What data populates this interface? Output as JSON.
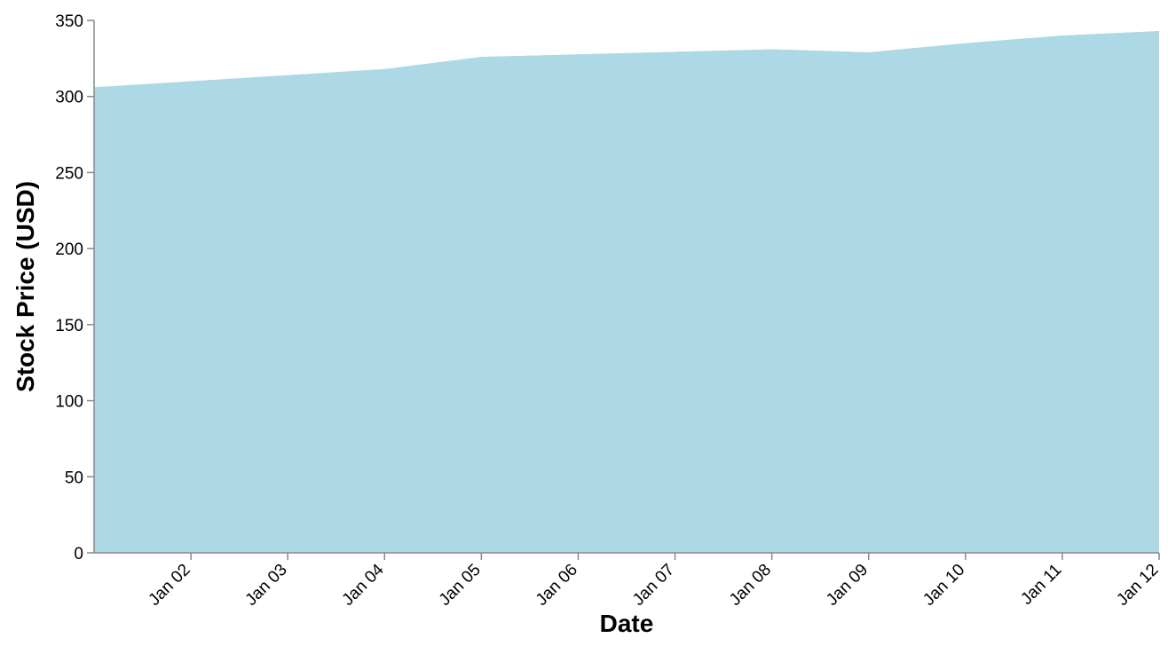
{
  "chart_data": {
    "type": "area",
    "title": "",
    "xlabel": "Date",
    "ylabel": "Stock Price (USD)",
    "x": [
      "2024-01-01",
      "2024-01-04",
      "2024-01-05",
      "2024-01-08",
      "2024-01-09",
      "2024-01-10",
      "2024-01-11",
      "2024-01-12"
    ],
    "series": [
      {
        "name": "",
        "values": [
          306,
          318,
          326,
          331,
          329,
          335,
          340,
          343
        ],
        "color": "#add8e6"
      }
    ],
    "xlim": [
      "2024-01-01",
      "2024-01-12"
    ],
    "ylim": [
      0,
      350
    ],
    "x_tick_labels": [
      "Jan 02",
      "Jan 03",
      "Jan 04",
      "Jan 05",
      "Jan 06",
      "Jan 07",
      "Jan 08",
      "Jan 09",
      "Jan 10",
      "Jan 11",
      "Jan 12"
    ],
    "y_ticks": [
      0,
      50,
      100,
      150,
      200,
      250,
      300,
      350
    ],
    "grid": false,
    "legend": "none"
  }
}
